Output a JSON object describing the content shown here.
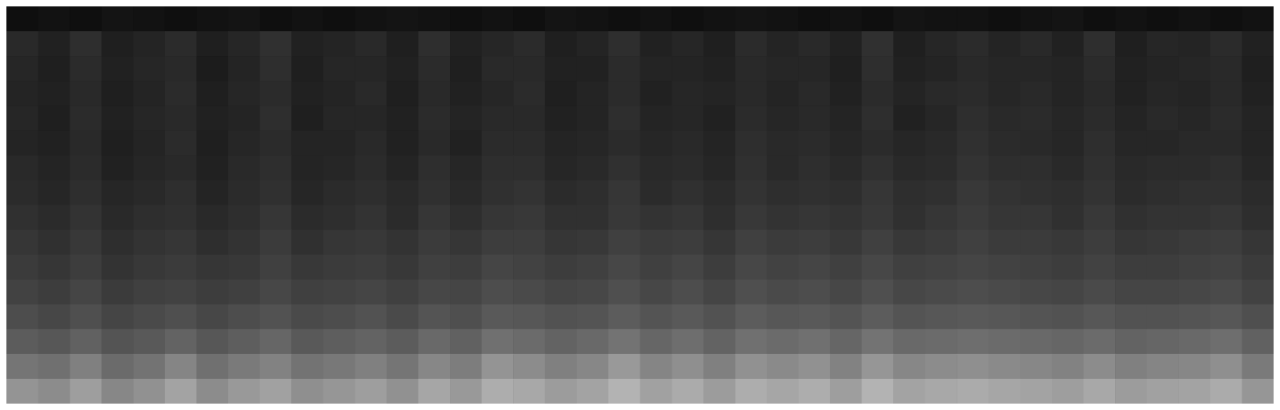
{
  "chart_data": {
    "type": "heatmap",
    "tick_labels": false,
    "zlim": [
      0,
      100
    ],
    "cells": [
      [
        6,
        7,
        6,
        8,
        7,
        6,
        7,
        8,
        6,
        7,
        6,
        7,
        8,
        7,
        6,
        7,
        6,
        8,
        7,
        6,
        7,
        6,
        7,
        8,
        7,
        6,
        7,
        6,
        8,
        7,
        7,
        6,
        7,
        8,
        6,
        7,
        6,
        7,
        6,
        7
      ],
      [
        16,
        13,
        18,
        12,
        14,
        17,
        12,
        15,
        19,
        13,
        14,
        16,
        12,
        18,
        13,
        15,
        17,
        12,
        14,
        18,
        13,
        15,
        12,
        17,
        14,
        16,
        13,
        19,
        12,
        15,
        17,
        14,
        16,
        13,
        18,
        12,
        15,
        14,
        17,
        13
      ],
      [
        15,
        12,
        17,
        13,
        15,
        16,
        11,
        14,
        18,
        12,
        15,
        15,
        13,
        17,
        12,
        16,
        16,
        13,
        13,
        17,
        14,
        14,
        13,
        16,
        15,
        15,
        12,
        18,
        13,
        14,
        16,
        15,
        15,
        14,
        17,
        13,
        14,
        15,
        16,
        12
      ],
      [
        14,
        13,
        16,
        12,
        14,
        17,
        12,
        15,
        17,
        13,
        14,
        16,
        12,
        16,
        13,
        15,
        17,
        12,
        14,
        17,
        13,
        15,
        14,
        16,
        14,
        16,
        13,
        17,
        14,
        16,
        17,
        15,
        16,
        14,
        16,
        13,
        15,
        14,
        16,
        13
      ],
      [
        15,
        12,
        17,
        13,
        15,
        16,
        13,
        14,
        18,
        12,
        15,
        15,
        13,
        17,
        14,
        16,
        16,
        13,
        14,
        18,
        14,
        15,
        13,
        17,
        15,
        16,
        14,
        18,
        13,
        15,
        18,
        16,
        17,
        15,
        17,
        14,
        16,
        15,
        17,
        14
      ],
      [
        14,
        13,
        16,
        12,
        14,
        17,
        12,
        15,
        17,
        14,
        14,
        16,
        13,
        16,
        13,
        17,
        17,
        14,
        15,
        17,
        15,
        16,
        14,
        18,
        16,
        17,
        15,
        17,
        15,
        16,
        19,
        17,
        16,
        15,
        18,
        15,
        15,
        16,
        16,
        14
      ],
      [
        16,
        14,
        17,
        13,
        15,
        16,
        13,
        16,
        18,
        14,
        15,
        17,
        14,
        18,
        15,
        18,
        18,
        15,
        16,
        19,
        16,
        17,
        15,
        19,
        16,
        18,
        16,
        19,
        16,
        17,
        20,
        18,
        18,
        16,
        19,
        16,
        17,
        17,
        18,
        15
      ],
      [
        17,
        15,
        18,
        15,
        16,
        18,
        14,
        17,
        19,
        15,
        17,
        18,
        16,
        19,
        16,
        19,
        20,
        17,
        18,
        21,
        17,
        19,
        17,
        20,
        18,
        19,
        18,
        21,
        18,
        19,
        22,
        20,
        19,
        18,
        20,
        17,
        18,
        19,
        19,
        17
      ],
      [
        19,
        17,
        20,
        16,
        18,
        19,
        16,
        18,
        21,
        17,
        18,
        20,
        17,
        21,
        18,
        21,
        22,
        19,
        19,
        22,
        20,
        21,
        18,
        22,
        20,
        21,
        20,
        22,
        19,
        21,
        23,
        21,
        21,
        19,
        22,
        19,
        20,
        20,
        21,
        18
      ],
      [
        21,
        19,
        22,
        18,
        20,
        21,
        18,
        20,
        23,
        19,
        21,
        22,
        20,
        23,
        21,
        24,
        24,
        21,
        22,
        25,
        23,
        24,
        21,
        25,
        23,
        24,
        22,
        25,
        22,
        23,
        25,
        23,
        23,
        22,
        24,
        21,
        22,
        23,
        24,
        21
      ],
      [
        23,
        21,
        24,
        20,
        22,
        23,
        21,
        22,
        25,
        22,
        23,
        24,
        22,
        25,
        24,
        27,
        26,
        24,
        25,
        28,
        25,
        27,
        24,
        28,
        26,
        27,
        25,
        28,
        25,
        26,
        27,
        26,
        25,
        24,
        26,
        24,
        24,
        25,
        26,
        23
      ],
      [
        26,
        24,
        27,
        23,
        25,
        26,
        24,
        25,
        28,
        25,
        26,
        27,
        25,
        28,
        27,
        30,
        29,
        27,
        28,
        31,
        28,
        30,
        27,
        31,
        29,
        30,
        28,
        31,
        28,
        29,
        30,
        29,
        28,
        27,
        29,
        27,
        27,
        28,
        29,
        26
      ],
      [
        30,
        28,
        31,
        27,
        29,
        31,
        28,
        30,
        32,
        29,
        30,
        32,
        29,
        33,
        31,
        35,
        34,
        32,
        33,
        36,
        33,
        35,
        32,
        36,
        34,
        35,
        33,
        36,
        33,
        34,
        35,
        34,
        33,
        32,
        34,
        32,
        32,
        33,
        34,
        31
      ],
      [
        36,
        34,
        38,
        33,
        35,
        39,
        34,
        37,
        40,
        35,
        37,
        39,
        36,
        41,
        38,
        44,
        42,
        39,
        41,
        45,
        40,
        43,
        39,
        44,
        42,
        44,
        40,
        45,
        41,
        42,
        43,
        42,
        41,
        40,
        42,
        39,
        40,
        41,
        43,
        38
      ],
      [
        46,
        44,
        50,
        42,
        45,
        52,
        44,
        48,
        51,
        45,
        47,
        50,
        46,
        53,
        49,
        58,
        55,
        50,
        53,
        60,
        52,
        56,
        50,
        57,
        54,
        57,
        51,
        59,
        53,
        55,
        56,
        54,
        53,
        51,
        55,
        50,
        52,
        53,
        56,
        48
      ],
      [
        58,
        55,
        62,
        53,
        57,
        64,
        55,
        60,
        63,
        56,
        59,
        62,
        57,
        65,
        60,
        68,
        66,
        61,
        64,
        70,
        63,
        67,
        61,
        68,
        65,
        68,
        62,
        70,
        64,
        66,
        67,
        65,
        64,
        62,
        66,
        61,
        63,
        64,
        67,
        59
      ]
    ]
  }
}
